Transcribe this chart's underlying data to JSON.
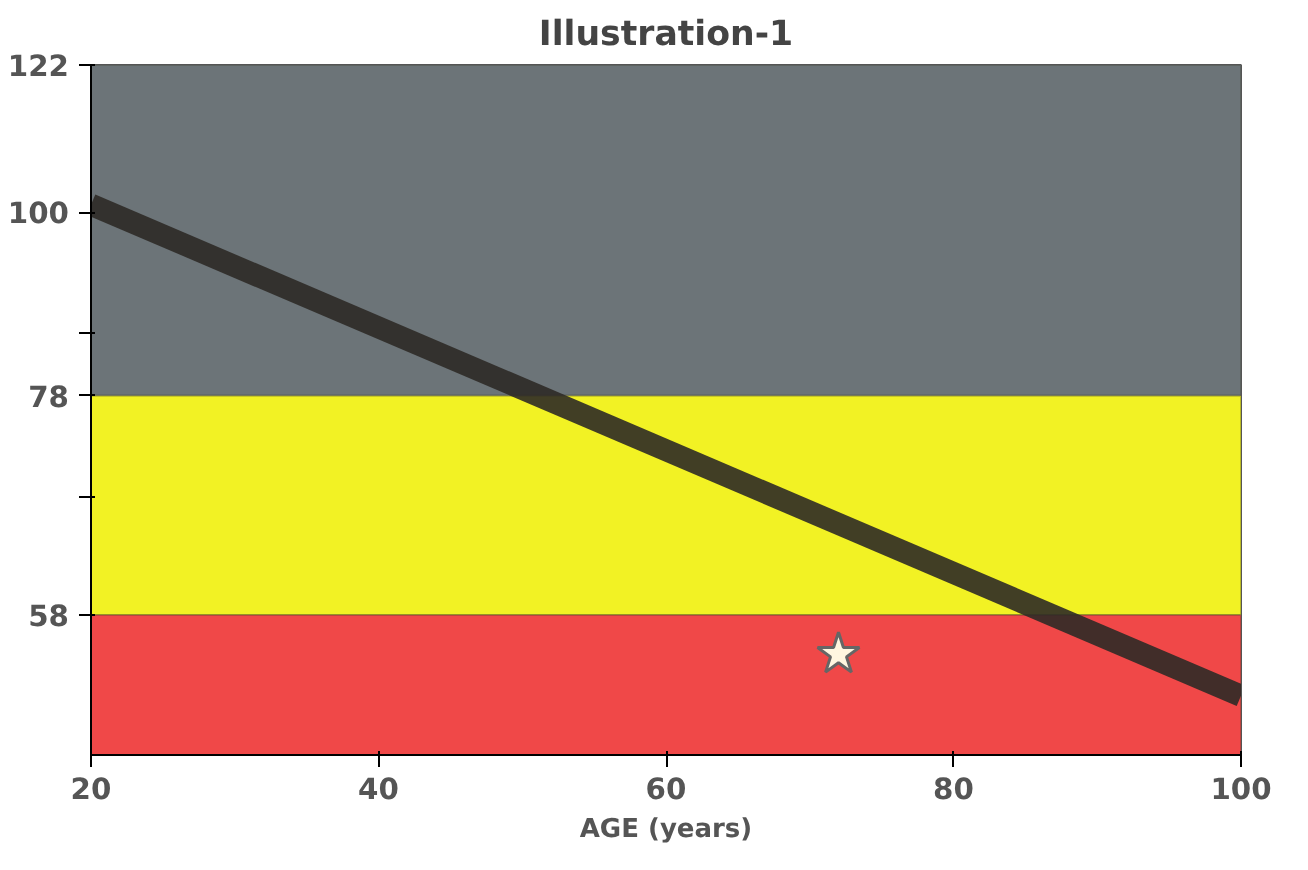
{
  "chart_data": {
    "type": "line",
    "title": "Illustration-1",
    "xlabel": "AGE (years)",
    "log": "y",
    "xlim": [
      20,
      100
    ],
    "xticks": [
      20,
      40,
      60,
      80,
      100
    ],
    "ylim": [
      48,
      122
    ],
    "yticks": [
      122,
      100,
      {
        "value": 85,
        "label": null
      },
      78,
      {
        "value": 68,
        "label": null
      },
      58
    ],
    "grid": false,
    "bands": [
      {
        "axis": "y",
        "from": 78,
        "to": 122,
        "label": null,
        "color": "#6c7478"
      },
      {
        "axis": "y",
        "from": 58,
        "to": 78,
        "label": null,
        "color": "#f2f224"
      },
      {
        "axis": "y",
        "from": 48,
        "to": 58,
        "label": null,
        "color": "#f04848"
      }
    ],
    "series": [
      {
        "color": "#2e2a26",
        "x": [
          20,
          100
        ],
        "values": [
          101,
          52
        ]
      },
      {
        "type": "scatter",
        "color": "#fff6e0",
        "marker": "star",
        "x": [
          72
        ],
        "values": [
          55
        ]
      }
    ]
  }
}
